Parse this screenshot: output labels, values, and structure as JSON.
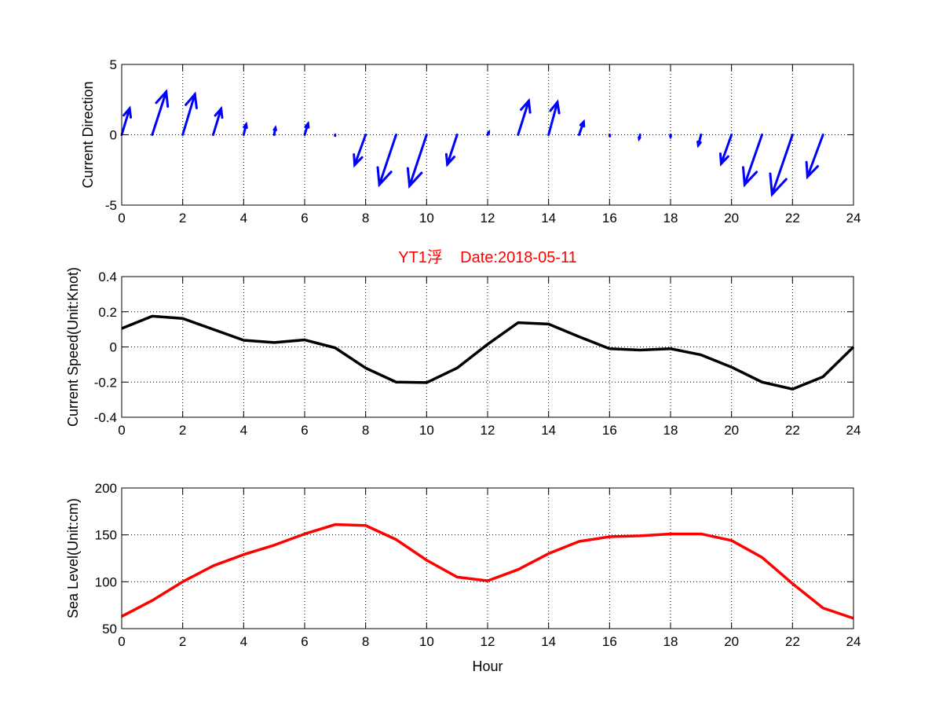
{
  "chart_data": [
    {
      "type": "quiver",
      "ylabel": "Current Direction",
      "xlim": [
        0,
        24
      ],
      "ylim": [
        -5,
        5
      ],
      "xticks": [
        0,
        2,
        4,
        6,
        8,
        10,
        12,
        14,
        16,
        18,
        20,
        22,
        24
      ],
      "yticks": [
        -5,
        0,
        5
      ],
      "grid": true,
      "color": "#0000ff",
      "x": [
        0,
        1,
        2,
        3,
        4,
        5,
        6,
        7,
        8,
        9,
        10,
        11,
        12,
        13,
        14,
        15,
        16,
        17,
        18,
        19,
        20,
        21,
        22,
        23
      ],
      "u": [
        0.26,
        0.46,
        0.4,
        0.26,
        0.08,
        0.04,
        0.11,
        0.0,
        -0.36,
        -0.55,
        -0.56,
        -0.32,
        0.04,
        0.35,
        0.29,
        0.15,
        0.01,
        -0.03,
        0.0,
        -0.09,
        -0.34,
        -0.57,
        -0.67,
        -0.51
      ],
      "v": [
        1.87,
        3.06,
        2.88,
        1.85,
        0.74,
        0.49,
        0.79,
        -0.07,
        -2.15,
        -3.55,
        -3.64,
        -2.11,
        0.18,
        2.41,
        2.32,
        0.92,
        -0.1,
        -0.29,
        -0.14,
        -0.75,
        -2.06,
        -3.55,
        -4.24,
        -2.99
      ]
    },
    {
      "type": "line",
      "title": "YT1浮    Date:2018-05-11",
      "title_color": "#ff0000",
      "ylabel": "Current Speed(Unit:Knot)",
      "xlim": [
        0,
        24
      ],
      "ylim": [
        -0.4,
        0.4
      ],
      "xticks": [
        0,
        2,
        4,
        6,
        8,
        10,
        12,
        14,
        16,
        18,
        20,
        22,
        24
      ],
      "yticks": [
        -0.4,
        -0.2,
        0,
        0.2,
        0.4
      ],
      "ytick_labels": [
        "-0.4",
        "-0.2",
        "0",
        "0.2",
        "0.4"
      ],
      "grid": true,
      "color": "#000000",
      "x": [
        0,
        1,
        2,
        3,
        4,
        5,
        6,
        7,
        8,
        9,
        10,
        11,
        12,
        13,
        14,
        15,
        16,
        17,
        18,
        19,
        20,
        21,
        22,
        23,
        24
      ],
      "values": [
        0.105,
        0.175,
        0.162,
        0.1,
        0.038,
        0.025,
        0.04,
        -0.005,
        -0.12,
        -0.2,
        -0.203,
        -0.12,
        0.015,
        0.138,
        0.13,
        0.058,
        -0.01,
        -0.018,
        -0.01,
        -0.045,
        -0.115,
        -0.2,
        -0.24,
        -0.17,
        0.0
      ]
    },
    {
      "type": "line",
      "ylabel": "Sea Level(Unit:cm)",
      "xlabel": "Hour",
      "xlim": [
        0,
        24
      ],
      "ylim": [
        50,
        200
      ],
      "xticks": [
        0,
        2,
        4,
        6,
        8,
        10,
        12,
        14,
        16,
        18,
        20,
        22,
        24
      ],
      "yticks": [
        50,
        100,
        150,
        200
      ],
      "grid": true,
      "color": "#ff0000",
      "x": [
        0,
        1,
        2,
        3,
        4,
        5,
        6,
        7,
        8,
        9,
        10,
        11,
        12,
        13,
        14,
        15,
        16,
        17,
        18,
        19,
        20,
        21,
        22,
        23,
        24
      ],
      "values": [
        63,
        80,
        100,
        117,
        129,
        139,
        151,
        161,
        160,
        145,
        123,
        105,
        101,
        113,
        130,
        143,
        148,
        149,
        151,
        151,
        144,
        126,
        98,
        72,
        61
      ]
    }
  ]
}
